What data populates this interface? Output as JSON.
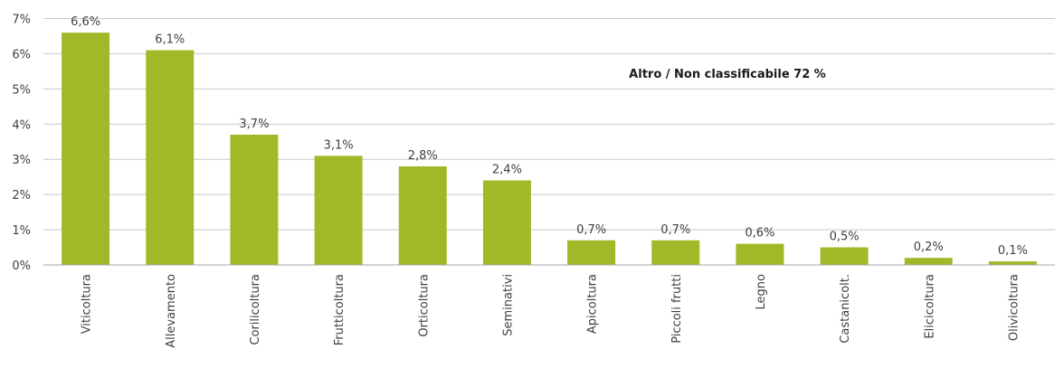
{
  "chart_data": {
    "type": "bar",
    "categories": [
      "Viticoltura",
      "Allevamento",
      "Corilicoltura",
      "Frutticoltura",
      "Orticoltura",
      "Seminativi",
      "Apicoltura",
      "Piccoli frutti",
      "Legno",
      "Castanicolt.",
      "Elicicoltura",
      "Olivicoltura"
    ],
    "values": [
      6.6,
      6.1,
      3.7,
      3.1,
      2.8,
      2.4,
      0.7,
      0.7,
      0.6,
      0.5,
      0.2,
      0.1
    ],
    "data_labels": [
      "6,6%",
      "6,1%",
      "3,7%",
      "3,1%",
      "2,8%",
      "2,4%",
      "0,7%",
      "0,7%",
      "0,6%",
      "0,5%",
      "0,2%",
      "0,1%"
    ],
    "yticks": [
      "0%",
      "1%",
      "2%",
      "3%",
      "4%",
      "5%",
      "6%",
      "7%"
    ],
    "ylim": [
      0,
      7
    ],
    "grid": true,
    "bar_color": "#a2b829",
    "annotation": "Altro / Non classificabile 72 %",
    "title": "",
    "xlabel": "",
    "ylabel": ""
  }
}
